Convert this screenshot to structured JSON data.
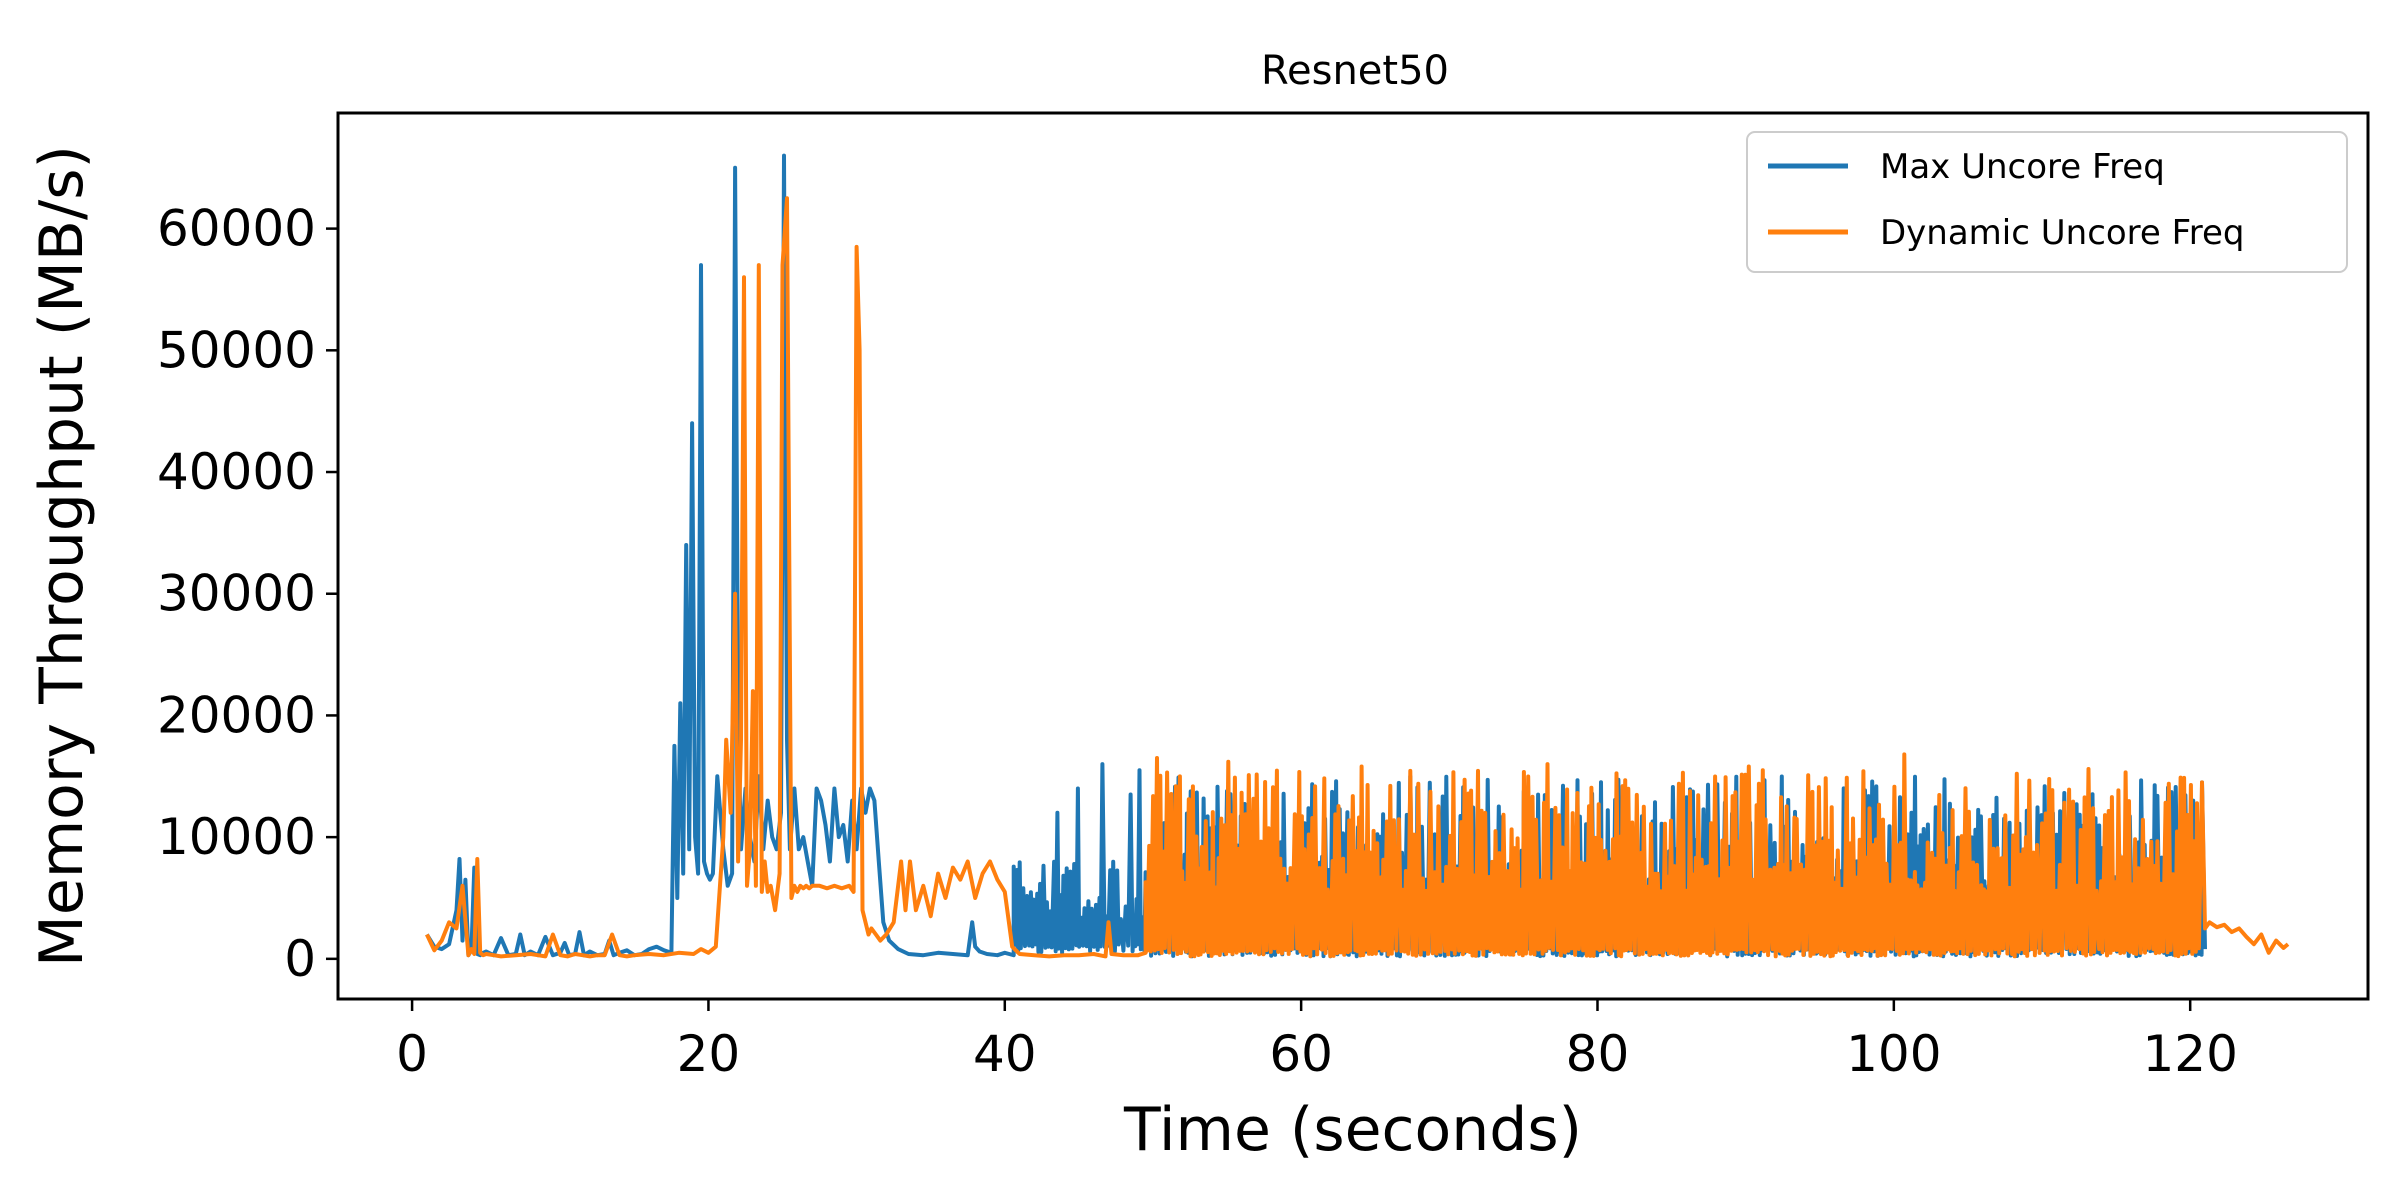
{
  "chart_data": {
    "type": "line",
    "title": "Resnet50",
    "xlabel": "Time (seconds)",
    "ylabel": "Memory Throughput (MB/s)",
    "xlim": [
      -5,
      132
    ],
    "ylim": [
      -3300,
      69500
    ],
    "xticks": [
      0,
      20,
      40,
      60,
      80,
      100,
      120
    ],
    "yticks": [
      0,
      10000,
      20000,
      30000,
      40000,
      50000,
      60000
    ],
    "xtick_labels": [
      "0",
      "20",
      "40",
      "60",
      "80",
      "100",
      "120"
    ],
    "ytick_labels": [
      "0",
      "10000",
      "20000",
      "30000",
      "40000",
      "50000",
      "60000"
    ],
    "grid": false,
    "legend_position": "top-right",
    "series": [
      {
        "name": "Max Uncore Freq",
        "color": "#1f77b4",
        "segments": [
          {
            "x": [
              1.0,
              1.5,
              2.0,
              2.5,
              3.0,
              3.2,
              3.4,
              3.6,
              3.8,
              4.0,
              4.2,
              4.4,
              4.6,
              4.8,
              5.0,
              5.5,
              6.0,
              6.5,
              7.0,
              7.3,
              7.6,
              8.0,
              8.5,
              9.0,
              9.5,
              10.0,
              10.3,
              10.6,
              11.0,
              11.3,
              11.6,
              12.0,
              12.5,
              13.0,
              13.3,
              13.6,
              14.0,
              14.5,
              15.0,
              15.5,
              16.0,
              16.5,
              17.0,
              17.5,
              17.7,
              17.9,
              18.1,
              18.3,
              18.5,
              18.7,
              18.9,
              19.1,
              19.3,
              19.5,
              19.7,
              19.9,
              20.1,
              20.3,
              20.6,
              21.0,
              21.3,
              21.6,
              21.8,
              22.0,
              22.2,
              22.5,
              22.8,
              23.1,
              23.4,
              23.7,
              24.0,
              24.3,
              24.6,
              24.9,
              25.1,
              25.3,
              25.5,
              25.8,
              26.1,
              26.4,
              26.7,
              27.0,
              27.3,
              27.6,
              27.9,
              28.2,
              28.5,
              28.8,
              29.1,
              29.4,
              29.7,
              30.0,
              30.3,
              30.6,
              30.9,
              31.2,
              31.5,
              31.8,
              32.2,
              32.8,
              33.5,
              34.5,
              35.5,
              36.5,
              37.5,
              37.8,
              38.0,
              38.3,
              38.8,
              39.5,
              40.0,
              40.3,
              40.6
            ],
            "y": [
              2000,
              1000,
              800,
              1200,
              4000,
              8200,
              1500,
              6500,
              300,
              700,
              7500,
              400,
              300,
              500,
              600,
              300,
              1700,
              300,
              400,
              2000,
              300,
              600,
              300,
              1800,
              300,
              500,
              1300,
              300,
              400,
              2200,
              300,
              600,
              300,
              400,
              1500,
              300,
              500,
              700,
              300,
              400,
              800,
              1000,
              700,
              500,
              17500,
              5000,
              21000,
              7000,
              34000,
              9000,
              44000,
              10000,
              7000,
              57000,
              8000,
              7000,
              6500,
              7000,
              15000,
              9000,
              6000,
              7000,
              65000,
              20000,
              9000,
              14000,
              10000,
              8000,
              15000,
              9000,
              13000,
              10000,
              9000,
              12000,
              66000,
              18000,
              9000,
              14000,
              9000,
              10000,
              8000,
              6000,
              14000,
              13000,
              11000,
              8000,
              14000,
              10000,
              11000,
              8000,
              13000,
              9000,
              14000,
              12000,
              14000,
              13000,
              8000,
              3000,
              1500,
              800,
              400,
              300,
              500,
              400,
              300,
              3000,
              1000,
              600,
              400,
              300,
              500,
              400,
              300
            ]
          }
        ],
        "noise_regions": [
          {
            "x_start": 40.6,
            "x_end": 49.5,
            "low": 500,
            "high": 8000,
            "peaks": [
              {
                "x": 43.5,
                "y": 12000
              },
              {
                "x": 44.8,
                "y": 14000
              },
              {
                "x": 46.5,
                "y": 16000
              },
              {
                "x": 48.3,
                "y": 13500
              },
              {
                "x": 49.0,
                "y": 15500
              }
            ]
          },
          {
            "x_start": 49.5,
            "x_end": 120.8,
            "low": 200,
            "high": 15000
          }
        ],
        "tail": {
          "x": [
            120.8,
            121.0
          ],
          "y": [
            14500,
            800
          ]
        }
      },
      {
        "name": "Dynamic Uncore Freq",
        "color": "#ff7f0e",
        "segments": [
          {
            "x": [
              1.0,
              1.5,
              2.0,
              2.5,
              3.0,
              3.4,
              3.8,
              4.0,
              4.2,
              4.4,
              4.6,
              4.8,
              5.0,
              5.5,
              6.0,
              7.0,
              8.0,
              8.5,
              9.0,
              9.5,
              10.0,
              10.5,
              11.0,
              11.5,
              12.0,
              12.5,
              13.0,
              13.5,
              14.0,
              14.5,
              15.0,
              16.0,
              17.0,
              18.0,
              19.0,
              19.5,
              20.0,
              20.5,
              21.0,
              21.2,
              21.5,
              21.8,
              22.0,
              22.2,
              22.4,
              22.6,
              22.8,
              23.0,
              23.2,
              23.4,
              23.6,
              23.8,
              24.0,
              24.2,
              24.5,
              24.8,
              25.0,
              25.3,
              25.6,
              25.8,
              26.0,
              26.2,
              26.4,
              26.6,
              26.8,
              27.0,
              27.5,
              28.0,
              28.5,
              29.0,
              29.5,
              29.8,
              30.0,
              30.2,
              30.4,
              30.6,
              30.8,
              31.0,
              31.3,
              31.6,
              32.0,
              32.5,
              33.0,
              33.3,
              33.6,
              34.0,
              34.5,
              35.0,
              35.5,
              36.0,
              36.5,
              37.0,
              37.5,
              38.0,
              38.5,
              39.0,
              39.5,
              40.0,
              40.5,
              41.0,
              42.0,
              43.0,
              44.0,
              45.0,
              46.0,
              46.8,
              47.0,
              47.2,
              48.0,
              49.0,
              49.5
            ],
            "y": [
              2000,
              700,
              1500,
              3000,
              2500,
              6000,
              300,
              800,
              400,
              8200,
              500,
              300,
              400,
              300,
              200,
              300,
              400,
              300,
              200,
              2000,
              300,
              200,
              400,
              300,
              200,
              300,
              300,
              2000,
              300,
              200,
              300,
              400,
              300,
              500,
              400,
              800,
              500,
              1000,
              10000,
              18000,
              12000,
              30000,
              8000,
              18000,
              56000,
              6000,
              9000,
              22000,
              6000,
              57000,
              5500,
              8000,
              5500,
              6000,
              4000,
              7000,
              57000,
              62500,
              5000,
              6000,
              5500,
              6000,
              5800,
              6000,
              5800,
              6000,
              6000,
              5800,
              6000,
              5800,
              6000,
              5500,
              58500,
              50000,
              4000,
              3000,
              2000,
              2500,
              2000,
              1500,
              2000,
              3000,
              8000,
              4000,
              8000,
              4000,
              6000,
              3500,
              7000,
              5000,
              7500,
              6500,
              8000,
              5000,
              7000,
              8000,
              6500,
              5500,
              1000,
              400,
              300,
              200,
              300,
              300,
              400,
              200,
              3000,
              400,
              300,
              300,
              500
            ]
          }
        ],
        "noise_regions": [
          {
            "x_start": 49.5,
            "x_end": 120.8,
            "low": 200,
            "high": 15500,
            "peaks": [
              {
                "x": 50.1,
                "y": 16500
              },
              {
                "x": 55.0,
                "y": 16200
              },
              {
                "x": 64.0,
                "y": 15800
              },
              {
                "x": 76.5,
                "y": 16000
              },
              {
                "x": 90.2,
                "y": 15800
              },
              {
                "x": 100.5,
                "y": 16800
              },
              {
                "x": 113.0,
                "y": 15600
              }
            ]
          }
        ],
        "tail": {
          "x": [
            120.8,
            121.0,
            121.3,
            121.8,
            122.3,
            122.8,
            123.3,
            123.8,
            124.3,
            124.8,
            125.3,
            125.8,
            126.3,
            126.6
          ],
          "y": [
            14500,
            2500,
            3000,
            2600,
            2800,
            2200,
            2500,
            1800,
            1200,
            2000,
            500,
            1500,
            900,
            1200
          ]
        }
      }
    ]
  }
}
